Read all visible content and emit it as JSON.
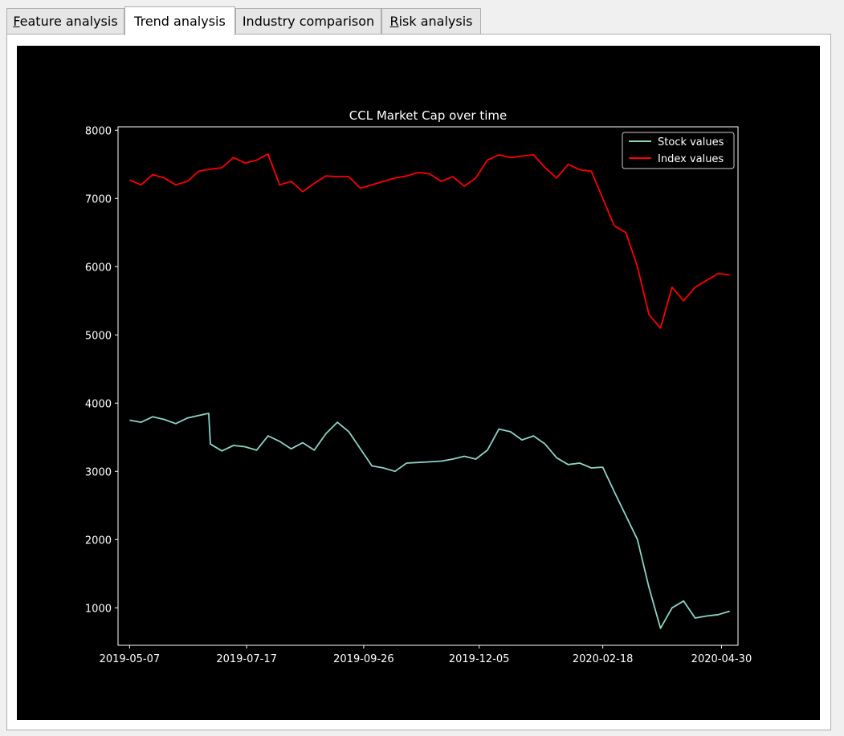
{
  "tabs": [
    {
      "label_pre": "",
      "mnemonic": "F",
      "label_post": "eature analysis",
      "active": false
    },
    {
      "label_pre": "Trend analysis",
      "mnemonic": "",
      "label_post": "",
      "active": true
    },
    {
      "label_pre": "Industry comparison",
      "mnemonic": "",
      "label_post": "",
      "active": false
    },
    {
      "label_pre": "",
      "mnemonic": "R",
      "label_post": "isk analysis",
      "active": false
    }
  ],
  "colors": {
    "background": "#000000",
    "axes": "#ffffff",
    "stock": "#8dd3c7",
    "index": "#ff0000"
  },
  "chart_data": {
    "type": "line",
    "title": "CCL Market Cap over time",
    "xlabel": "",
    "ylabel": "",
    "ylim": [
      450,
      8050
    ],
    "xlim": [
      "2019-04-30",
      "2020-05-10"
    ],
    "yticks": [
      1000,
      2000,
      3000,
      4000,
      5000,
      6000,
      7000,
      8000
    ],
    "xticks": [
      "2019-05-07",
      "2019-07-17",
      "2019-09-26",
      "2019-12-05",
      "2020-02-18",
      "2020-04-30"
    ],
    "legend": {
      "position": "top-right",
      "entries": [
        "Stock values",
        "Index values"
      ]
    },
    "grid": false,
    "series": [
      {
        "name": "Stock values",
        "x": [
          "2019-05-07",
          "2019-05-14",
          "2019-05-21",
          "2019-05-28",
          "2019-06-04",
          "2019-06-11",
          "2019-06-18",
          "2019-06-24",
          "2019-06-25",
          "2019-07-02",
          "2019-07-09",
          "2019-07-16",
          "2019-07-23",
          "2019-07-30",
          "2019-08-06",
          "2019-08-13",
          "2019-08-20",
          "2019-08-27",
          "2019-09-03",
          "2019-09-10",
          "2019-09-17",
          "2019-09-24",
          "2019-10-01",
          "2019-10-08",
          "2019-10-15",
          "2019-10-22",
          "2019-10-29",
          "2019-11-05",
          "2019-11-12",
          "2019-11-19",
          "2019-11-26",
          "2019-12-03",
          "2019-12-10",
          "2019-12-17",
          "2019-12-24",
          "2019-12-31",
          "2020-01-07",
          "2020-01-14",
          "2020-01-21",
          "2020-01-28",
          "2020-02-04",
          "2020-02-11",
          "2020-02-18",
          "2020-02-25",
          "2020-03-03",
          "2020-03-10",
          "2020-03-17",
          "2020-03-24",
          "2020-03-31",
          "2020-04-07",
          "2020-04-14",
          "2020-04-21",
          "2020-04-28",
          "2020-05-05"
        ],
        "values": [
          3750,
          3720,
          3800,
          3760,
          3700,
          3780,
          3820,
          3850,
          3400,
          3300,
          3380,
          3360,
          3310,
          3520,
          3440,
          3330,
          3420,
          3310,
          3550,
          3720,
          3580,
          3330,
          3080,
          3050,
          3000,
          3120,
          3130,
          3140,
          3150,
          3180,
          3220,
          3180,
          3310,
          3620,
          3580,
          3460,
          3520,
          3400,
          3200,
          3100,
          3120,
          3050,
          3060,
          2700,
          2350,
          2000,
          1300,
          700,
          1000,
          1100,
          850,
          880,
          900,
          950
        ]
      },
      {
        "name": "Index values",
        "x": [
          "2019-05-07",
          "2019-05-14",
          "2019-05-21",
          "2019-05-28",
          "2019-06-04",
          "2019-06-11",
          "2019-06-18",
          "2019-06-25",
          "2019-07-02",
          "2019-07-09",
          "2019-07-16",
          "2019-07-23",
          "2019-07-30",
          "2019-08-06",
          "2019-08-13",
          "2019-08-20",
          "2019-08-27",
          "2019-09-03",
          "2019-09-10",
          "2019-09-17",
          "2019-09-24",
          "2019-10-01",
          "2019-10-08",
          "2019-10-15",
          "2019-10-22",
          "2019-10-29",
          "2019-11-05",
          "2019-11-12",
          "2019-11-19",
          "2019-11-26",
          "2019-12-03",
          "2019-12-10",
          "2019-12-17",
          "2019-12-24",
          "2019-12-31",
          "2020-01-07",
          "2020-01-14",
          "2020-01-21",
          "2020-01-28",
          "2020-02-04",
          "2020-02-11",
          "2020-02-18",
          "2020-02-25",
          "2020-03-03",
          "2020-03-10",
          "2020-03-17",
          "2020-03-24",
          "2020-03-31",
          "2020-04-07",
          "2020-04-14",
          "2020-04-21",
          "2020-04-28",
          "2020-05-05"
        ],
        "values": [
          7270,
          7200,
          7350,
          7300,
          7200,
          7250,
          7400,
          7430,
          7450,
          7600,
          7520,
          7560,
          7650,
          7200,
          7250,
          7100,
          7220,
          7330,
          7320,
          7320,
          7150,
          7200,
          7250,
          7300,
          7330,
          7380,
          7360,
          7250,
          7320,
          7180,
          7300,
          7560,
          7640,
          7600,
          7620,
          7640,
          7450,
          7300,
          7500,
          7420,
          7400,
          7000,
          6600,
          6500,
          6000,
          5300,
          5100,
          5700,
          5500,
          5700,
          5800,
          5900,
          5880
        ]
      }
    ]
  }
}
